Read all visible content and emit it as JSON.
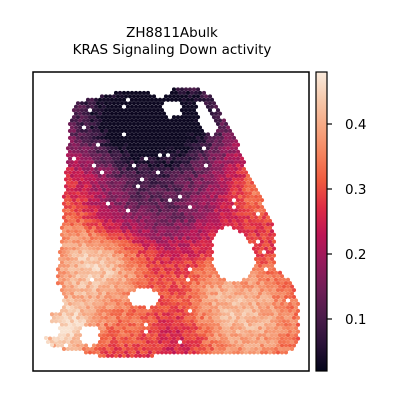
{
  "chart_data": {
    "type": "heatmap",
    "title_line1": "ZH8811Abulk",
    "title_line2": "KRAS Signaling Down activity",
    "colormap": "rocket",
    "colormap_stops": [
      "#03051a",
      "#2b1339",
      "#4c1d4b",
      "#701f57",
      "#961b5c",
      "#bd1655",
      "#de2c45",
      "#f05b3f",
      "#f5845e",
      "#f6a883",
      "#f6c9ac",
      "#faebdd"
    ],
    "colorbar": {
      "vmin": 0.02,
      "vmax": 0.48,
      "ticks": [
        0.1,
        0.2,
        0.3,
        0.4
      ],
      "tick_labels": [
        "0.1",
        "0.2",
        "0.3",
        "0.4"
      ]
    },
    "spot_value_range": [
      0.03,
      0.47
    ],
    "regions": [
      {
        "name": "upper band",
        "approx_value": 0.12
      },
      {
        "name": "left middle",
        "approx_value": 0.28
      },
      {
        "name": "center",
        "approx_value": 0.2
      },
      {
        "name": "lower right",
        "approx_value": 0.36
      },
      {
        "name": "lower left edge",
        "approx_value": 0.42
      }
    ]
  }
}
